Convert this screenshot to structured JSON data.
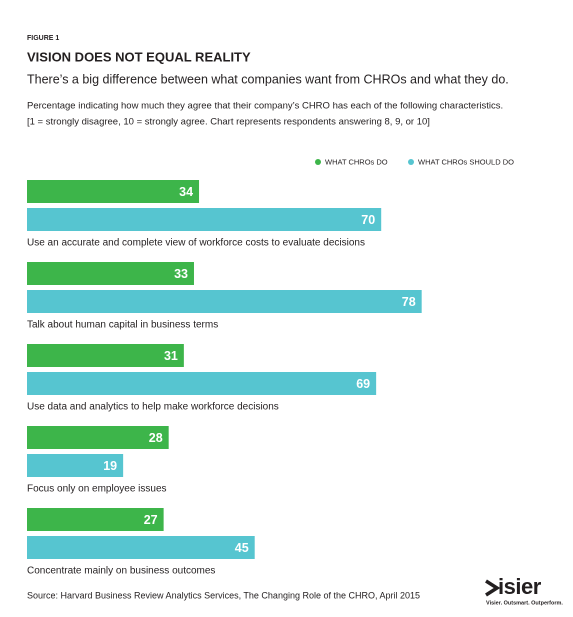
{
  "chart_data": {
    "type": "bar",
    "orientation": "horizontal",
    "figure_label": "FIGURE 1",
    "title": "VISION DOES NOT EQUAL REALITY",
    "subtitle": "There’s a big difference between what companies want from CHROs and what they do.",
    "description": [
      "Percentage indicating how much they agree that their company’s CHRO has each of the following characteristics.",
      "[1 = strongly disagree, 10 = strongly agree. Chart represents respondents answering 8, 9, or 10]"
    ],
    "categories": [
      "Use an accurate and complete view of workforce costs to evaluate decisions",
      "Talk about human capital in business terms",
      "Use data and analytics to help make workforce decisions",
      "Focus only on employee issues",
      "Concentrate mainly on business outcomes"
    ],
    "series": [
      {
        "name": "WHAT CHROs DO",
        "color": "#3db54a",
        "values": [
          34,
          33,
          31,
          28,
          27
        ]
      },
      {
        "name": "WHAT CHROs SHOULD DO",
        "color": "#56c5d0",
        "values": [
          70,
          78,
          69,
          19,
          45
        ]
      }
    ],
    "source": "Source: Harvard Business Review Analytics Services, The Changing Role of the CHRO, April 2015",
    "logo": "isier",
    "tagline": "Visier. Outsmart. Outperform."
  }
}
